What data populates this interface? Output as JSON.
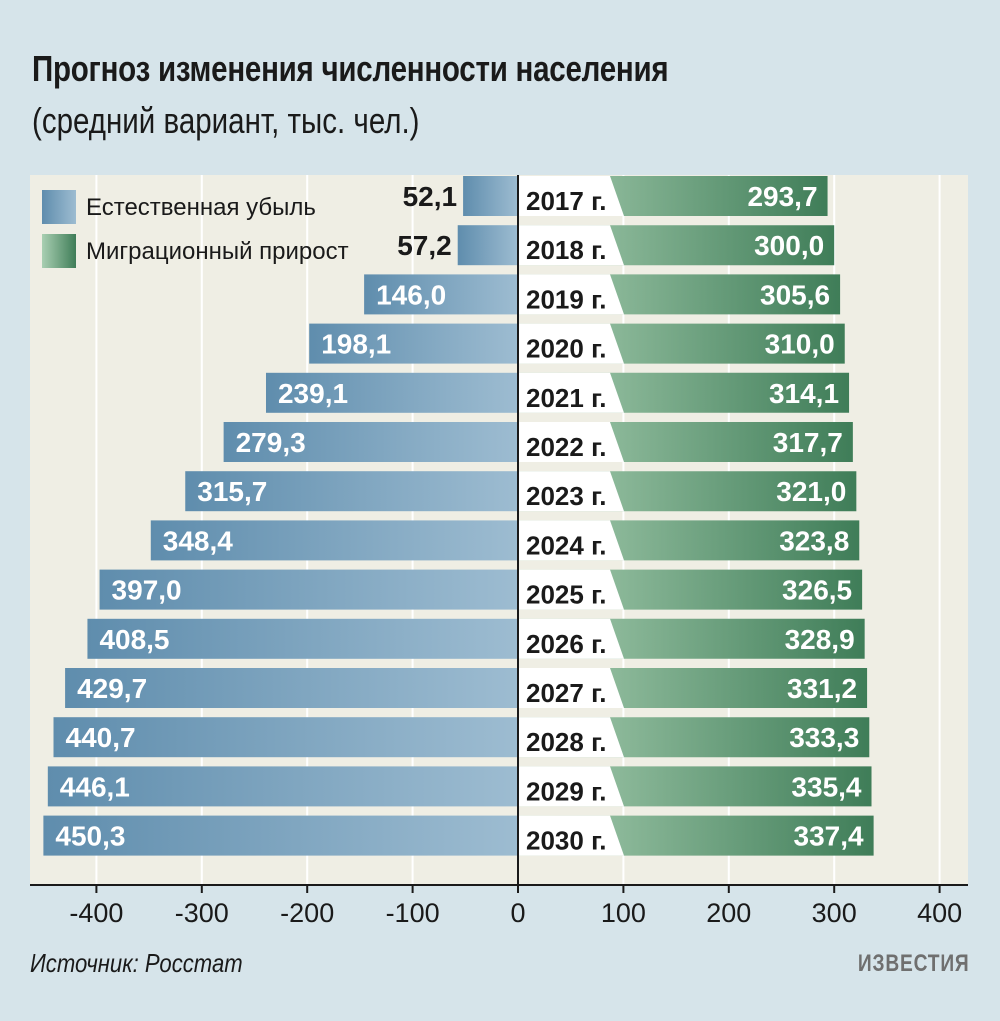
{
  "chart_data": {
    "type": "bar",
    "title": "Прогноз изменения численности населения",
    "subtitle": "(средний вариант, тыс. чел.)",
    "orientation": "horizontal-diverging",
    "categories": [
      "2017 г.",
      "2018 г.",
      "2019 г.",
      "2020 г.",
      "2021 г.",
      "2022 г.",
      "2023 г.",
      "2024 г.",
      "2025 г.",
      "2026 г.",
      "2027 г.",
      "2028 г.",
      "2029 г.",
      "2030 г."
    ],
    "series": [
      {
        "name": "Естественная убыль",
        "color": "#6b97b4",
        "values": [
          -52.1,
          -57.2,
          -146.0,
          -198.1,
          -239.1,
          -279.3,
          -315.7,
          -348.4,
          -397.0,
          -408.5,
          -429.7,
          -440.7,
          -446.1,
          -450.3
        ],
        "labels": [
          "52,1",
          "57,2",
          "146,0",
          "198,1",
          "239,1",
          "279,3",
          "315,7",
          "348,4",
          "397,0",
          "408,5",
          "429,7",
          "440,7",
          "446,1",
          "450,3"
        ]
      },
      {
        "name": "Миграционный прирост",
        "color": "#4e8a65",
        "values": [
          293.7,
          300.0,
          305.6,
          310.0,
          314.1,
          317.7,
          321.0,
          323.8,
          326.5,
          328.9,
          331.2,
          333.3,
          335.4,
          337.4
        ],
        "labels": [
          "293,7",
          "300,0",
          "305,6",
          "310,0",
          "314,1",
          "317,7",
          "321,0",
          "323,8",
          "326,5",
          "328,9",
          "331,2",
          "333,3",
          "335,4",
          "337,4"
        ]
      }
    ],
    "xlim": [
      -460,
      425
    ],
    "xticks": [
      -400,
      -300,
      -200,
      -100,
      0,
      100,
      200,
      300,
      400
    ],
    "xtick_labels": [
      "-400",
      "-300",
      "-200",
      "-100",
      "0",
      "100",
      "200",
      "300",
      "400"
    ],
    "grid": true,
    "legend_position": "top-left"
  },
  "footer": {
    "source": "Источник: Росстат",
    "logo": "ИЗВЕСТИЯ"
  }
}
